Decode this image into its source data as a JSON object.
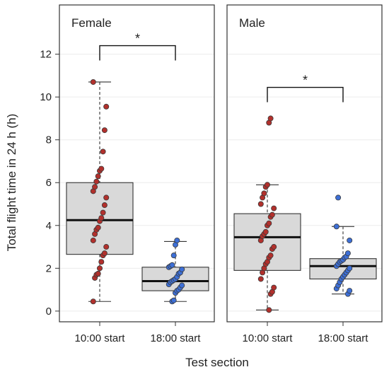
{
  "chart_data": {
    "type": "box",
    "ylabel": "Total flight time in 24 h (h)",
    "xlabel": "Test section",
    "ylim": [
      -0.5,
      14.3
    ],
    "yticks": [
      0,
      2,
      4,
      6,
      8,
      10,
      12
    ],
    "grid": true,
    "categories": [
      "10:00 start",
      "18:00 start"
    ],
    "colors": {
      "box_fill": "#d9d9d9",
      "point_10": "#b2302c",
      "point_18": "#3d6fd6",
      "panel_border": "#333333",
      "grid": "#ececec"
    },
    "panels": [
      {
        "title": "Female",
        "significance": {
          "label": "*",
          "y": 12.4
        },
        "groups": [
          {
            "category": "10:00 start",
            "color": "#b2302c",
            "box": {
              "whisker_low": 0.45,
              "q1": 2.65,
              "median": 4.25,
              "q3": 6.0,
              "whisker_high": 10.7
            },
            "points": [
              0.45,
              1.55,
              1.7,
              1.75,
              2.0,
              2.3,
              2.6,
              2.7,
              3.0,
              3.3,
              3.6,
              3.8,
              3.9,
              4.2,
              4.35,
              4.6,
              4.95,
              5.3,
              5.6,
              5.8,
              6.05,
              6.3,
              6.55,
              6.65,
              7.45,
              8.45,
              9.55,
              10.7
            ]
          },
          {
            "category": "18:00 start",
            "color": "#3d6fd6",
            "box": {
              "whisker_low": 0.45,
              "q1": 0.95,
              "median": 1.4,
              "q3": 2.05,
              "whisker_high": 3.25
            },
            "points": [
              0.45,
              0.5,
              0.85,
              0.95,
              1.0,
              1.1,
              1.2,
              1.25,
              1.35,
              1.4,
              1.45,
              1.5,
              1.6,
              1.75,
              1.8,
              1.95,
              2.05,
              2.1,
              2.15,
              2.6,
              3.1,
              3.3
            ]
          }
        ]
      },
      {
        "title": "Male",
        "significance": {
          "label": "*",
          "y": 10.45
        },
        "groups": [
          {
            "category": "10:00 start",
            "color": "#b2302c",
            "box": {
              "whisker_low": 0.05,
              "q1": 1.9,
              "median": 3.45,
              "q3": 4.55,
              "whisker_high": 5.9
            },
            "points": [
              0.05,
              0.8,
              0.9,
              1.1,
              1.5,
              1.8,
              2.0,
              2.2,
              2.3,
              2.5,
              2.6,
              2.9,
              3.0,
              3.3,
              3.5,
              3.6,
              3.7,
              4.0,
              4.1,
              4.4,
              4.5,
              4.8,
              5.0,
              5.3,
              5.5,
              5.8,
              5.9,
              8.8,
              9.0
            ]
          },
          {
            "category": "18:00 start",
            "color": "#3d6fd6",
            "box": {
              "whisker_low": 0.8,
              "q1": 1.5,
              "median": 2.1,
              "q3": 2.45,
              "whisker_high": 3.95
            },
            "points": [
              0.8,
              0.95,
              1.05,
              1.2,
              1.35,
              1.5,
              1.6,
              1.7,
              1.8,
              1.9,
              2.0,
              2.1,
              2.2,
              2.3,
              2.35,
              2.4,
              2.5,
              2.55,
              2.7,
              3.3,
              3.95,
              5.3
            ]
          }
        ]
      }
    ]
  }
}
